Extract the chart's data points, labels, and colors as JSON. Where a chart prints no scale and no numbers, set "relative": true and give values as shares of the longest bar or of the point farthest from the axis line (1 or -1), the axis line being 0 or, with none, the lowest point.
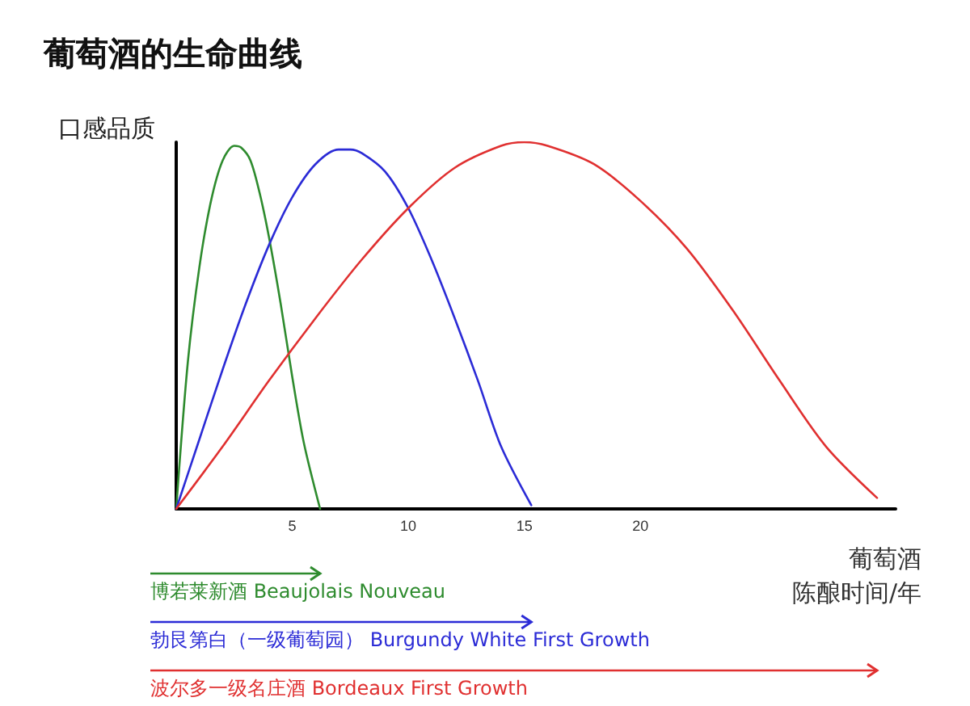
{
  "chart_data": {
    "type": "line",
    "title": "葡萄酒的生命曲线",
    "ylabel": "口感品质",
    "xlabel": "葡萄酒陈酿时间/年",
    "relative": true,
    "xlim": [
      0,
      31
    ],
    "xticks": [
      5,
      10,
      15,
      20
    ],
    "grid": false,
    "marker": "none",
    "line_style": "solid",
    "legend": "bottom",
    "series": [
      {
        "name": "博若莱新酒 Beaujolais Nouveau",
        "color": "#2e8b2e",
        "x": [
          0,
          0.5,
          1,
          1.5,
          2,
          2.5,
          2.8,
          3.2,
          3.6,
          4,
          4.5,
          5,
          5.5,
          6.2
        ],
        "values": [
          0,
          0.4,
          0.66,
          0.84,
          0.95,
          0.99,
          0.985,
          0.95,
          0.86,
          0.74,
          0.56,
          0.36,
          0.18,
          0
        ]
      },
      {
        "name": "勃艮第白（一级葡萄园） Burgundy White First Growth",
        "color": "#2b2bd6",
        "x": [
          0,
          1,
          2,
          3,
          4,
          5,
          6,
          7,
          7.5,
          8,
          9,
          10,
          11,
          12,
          13,
          14,
          15.3
        ],
        "values": [
          0,
          0.19,
          0.38,
          0.56,
          0.72,
          0.85,
          0.94,
          0.98,
          0.98,
          0.97,
          0.92,
          0.82,
          0.68,
          0.52,
          0.35,
          0.17,
          0.01
        ]
      },
      {
        "name": "波尔多一级名庄酒 Bordeaux First Growth",
        "color": "#e03030",
        "x": [
          0,
          2,
          4,
          6,
          8,
          10,
          12,
          14,
          15,
          16,
          18,
          20,
          22,
          24,
          26,
          28,
          30.2
        ],
        "values": [
          0,
          0.17,
          0.35,
          0.52,
          0.68,
          0.82,
          0.93,
          0.99,
          1,
          0.99,
          0.94,
          0.84,
          0.71,
          0.54,
          0.35,
          0.17,
          0.03
        ]
      }
    ]
  }
}
